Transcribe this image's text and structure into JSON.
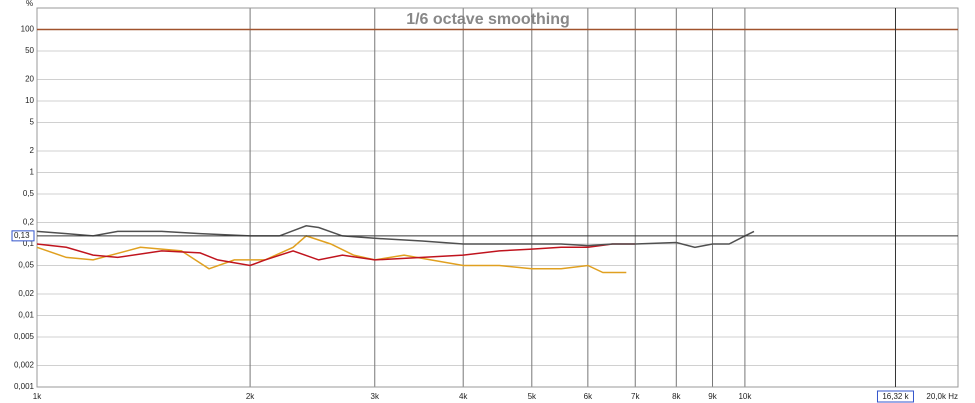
{
  "chart_data": {
    "type": "line",
    "title": "1/6 octave smoothing",
    "y_unit": "%",
    "xscale": "log",
    "yscale": "log",
    "grid": true,
    "xlim": [
      1000,
      20000
    ],
    "ylim": [
      0.001,
      200
    ],
    "xticks": [
      {
        "value": 1000,
        "label": "1k"
      },
      {
        "value": 2000,
        "label": "2k"
      },
      {
        "value": 3000,
        "label": "3k"
      },
      {
        "value": 4000,
        "label": "4k"
      },
      {
        "value": 5000,
        "label": "5k"
      },
      {
        "value": 6000,
        "label": "6k"
      },
      {
        "value": 7000,
        "label": "7k"
      },
      {
        "value": 8000,
        "label": "8k"
      },
      {
        "value": 9000,
        "label": "9k"
      },
      {
        "value": 10000,
        "label": "10k"
      },
      {
        "value": 20000,
        "label": "20,0k Hz"
      }
    ],
    "yticks": [
      100,
      50,
      20,
      10,
      5,
      2,
      1,
      {
        "value": 0.5,
        "label": "0,5"
      },
      {
        "value": 0.2,
        "label": "0,2"
      },
      {
        "value": 0.1,
        "label": "0,1"
      },
      {
        "value": 0.05,
        "label": "0,05"
      },
      {
        "value": 0.02,
        "label": "0,02"
      },
      {
        "value": 0.01,
        "label": "0,01"
      },
      {
        "value": 0.005,
        "label": "0,005"
      },
      {
        "value": 0.002,
        "label": "0,002"
      },
      {
        "value": 0.001,
        "label": "0,001"
      }
    ],
    "cursor": {
      "x": 16320,
      "x_label": "16,32 k",
      "y": 0.13,
      "y_label": "0,13"
    },
    "series": [
      {
        "color": "#a0522d",
        "x": [
          1000,
          20000
        ],
        "values": [
          100,
          100
        ]
      },
      {
        "color": "#e0a020",
        "x": [
          1000,
          1100,
          1200,
          1400,
          1600,
          1750,
          1900,
          2100,
          2300,
          2400,
          2600,
          2800,
          3000,
          3300,
          3600,
          4000,
          4500,
          5000,
          5500,
          6000,
          6300,
          6800
        ],
        "values": [
          0.09,
          0.065,
          0.06,
          0.09,
          0.08,
          0.045,
          0.06,
          0.06,
          0.09,
          0.13,
          0.1,
          0.07,
          0.06,
          0.07,
          0.06,
          0.05,
          0.05,
          0.045,
          0.045,
          0.05,
          0.04,
          0.04
        ]
      },
      {
        "color": "#c0141e",
        "x": [
          1000,
          1100,
          1200,
          1300,
          1500,
          1700,
          1800,
          2000,
          2100,
          2300,
          2500,
          2700,
          3000,
          3500,
          4000,
          4500,
          5000,
          5500,
          6000,
          6500,
          7000
        ],
        "values": [
          0.1,
          0.09,
          0.07,
          0.065,
          0.08,
          0.075,
          0.06,
          0.05,
          0.06,
          0.08,
          0.06,
          0.07,
          0.06,
          0.065,
          0.07,
          0.08,
          0.085,
          0.09,
          0.09,
          0.1,
          0.1
        ]
      },
      {
        "color": "#505050",
        "x": [
          1000,
          1100,
          1200,
          1300,
          1500,
          1700,
          2000,
          2200,
          2400,
          2500,
          2700,
          3000,
          3500,
          4000,
          4500,
          5000,
          5500,
          6000,
          6500,
          7000,
          8000,
          8500,
          9000,
          9500,
          10000,
          10300
        ],
        "values": [
          0.15,
          0.14,
          0.13,
          0.15,
          0.15,
          0.14,
          0.13,
          0.13,
          0.18,
          0.17,
          0.13,
          0.12,
          0.11,
          0.1,
          0.1,
          0.1,
          0.1,
          0.095,
          0.1,
          0.1,
          0.105,
          0.09,
          0.1,
          0.1,
          0.13,
          0.15
        ]
      }
    ]
  }
}
